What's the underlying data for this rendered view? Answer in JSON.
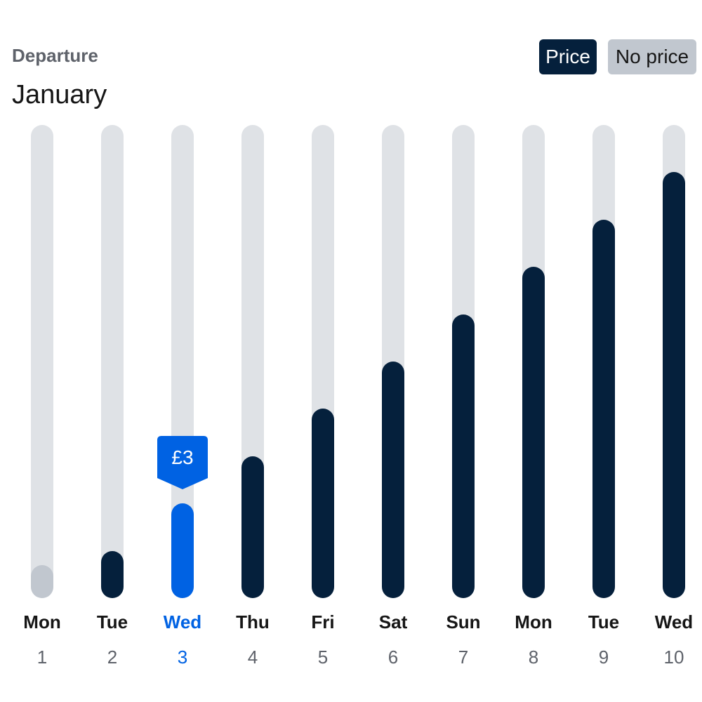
{
  "header": {
    "label": "Departure",
    "month": "January",
    "legend_price": "Price",
    "legend_no_price": "No price"
  },
  "colors": {
    "track": "#dfe2e6",
    "price_bar": "#05203c",
    "no_price_bar": "#c1c7cf",
    "selected": "#0062e3"
  },
  "chart_data": {
    "type": "bar",
    "categories": [
      "Mon 1",
      "Tue 2",
      "Wed 3",
      "Thu 4",
      "Fri 5",
      "Sat 6",
      "Sun 7",
      "Mon 8",
      "Tue 9",
      "Wed 10"
    ],
    "days": [
      {
        "weekday": "Mon",
        "date": "1",
        "level": 0.07,
        "has_price": false,
        "selected": false
      },
      {
        "weekday": "Tue",
        "date": "2",
        "level": 0.1,
        "has_price": true,
        "selected": false
      },
      {
        "weekday": "Wed",
        "date": "3",
        "level": 0.2,
        "has_price": true,
        "selected": true,
        "price": "£3"
      },
      {
        "weekday": "Thu",
        "date": "4",
        "level": 0.3,
        "has_price": true,
        "selected": false
      },
      {
        "weekday": "Fri",
        "date": "5",
        "level": 0.4,
        "has_price": true,
        "selected": false
      },
      {
        "weekday": "Sat",
        "date": "6",
        "level": 0.5,
        "has_price": true,
        "selected": false
      },
      {
        "weekday": "Sun",
        "date": "7",
        "level": 0.6,
        "has_price": true,
        "selected": false
      },
      {
        "weekday": "Mon",
        "date": "8",
        "level": 0.7,
        "has_price": true,
        "selected": false
      },
      {
        "weekday": "Tue",
        "date": "9",
        "level": 0.8,
        "has_price": true,
        "selected": false
      },
      {
        "weekday": "Wed",
        "date": "10",
        "level": 0.9,
        "has_price": true,
        "selected": false
      }
    ]
  }
}
